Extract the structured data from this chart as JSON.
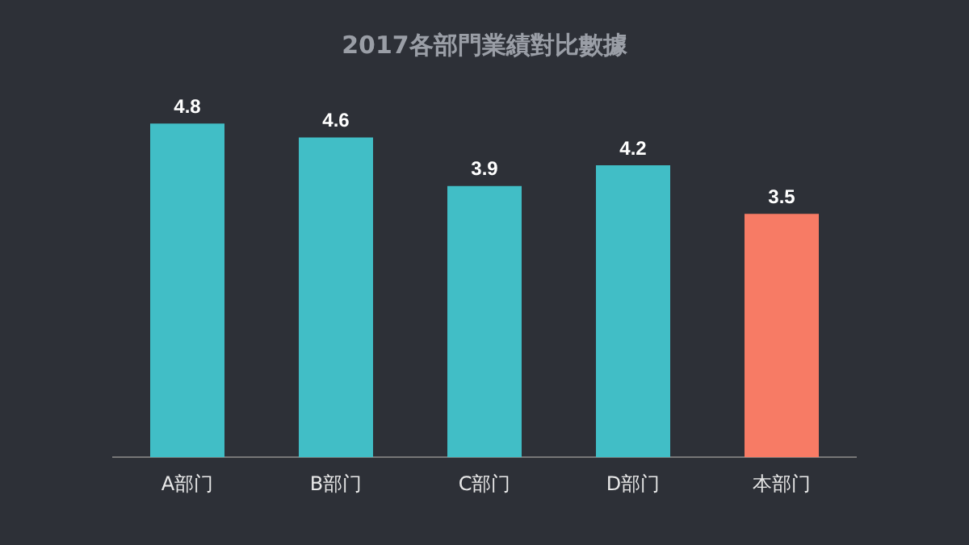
{
  "chart_data": {
    "type": "bar",
    "title": "2017各部門業績對比數據",
    "categories": [
      "A部门",
      "B部门",
      "C部门",
      "D部门",
      "本部门"
    ],
    "values": [
      4.8,
      4.6,
      3.9,
      4.2,
      3.5
    ],
    "colors": [
      "#41bec6",
      "#41bec6",
      "#41bec6",
      "#41bec6",
      "#f77b65"
    ],
    "data_labels": true,
    "grid": false,
    "legend": false
  }
}
